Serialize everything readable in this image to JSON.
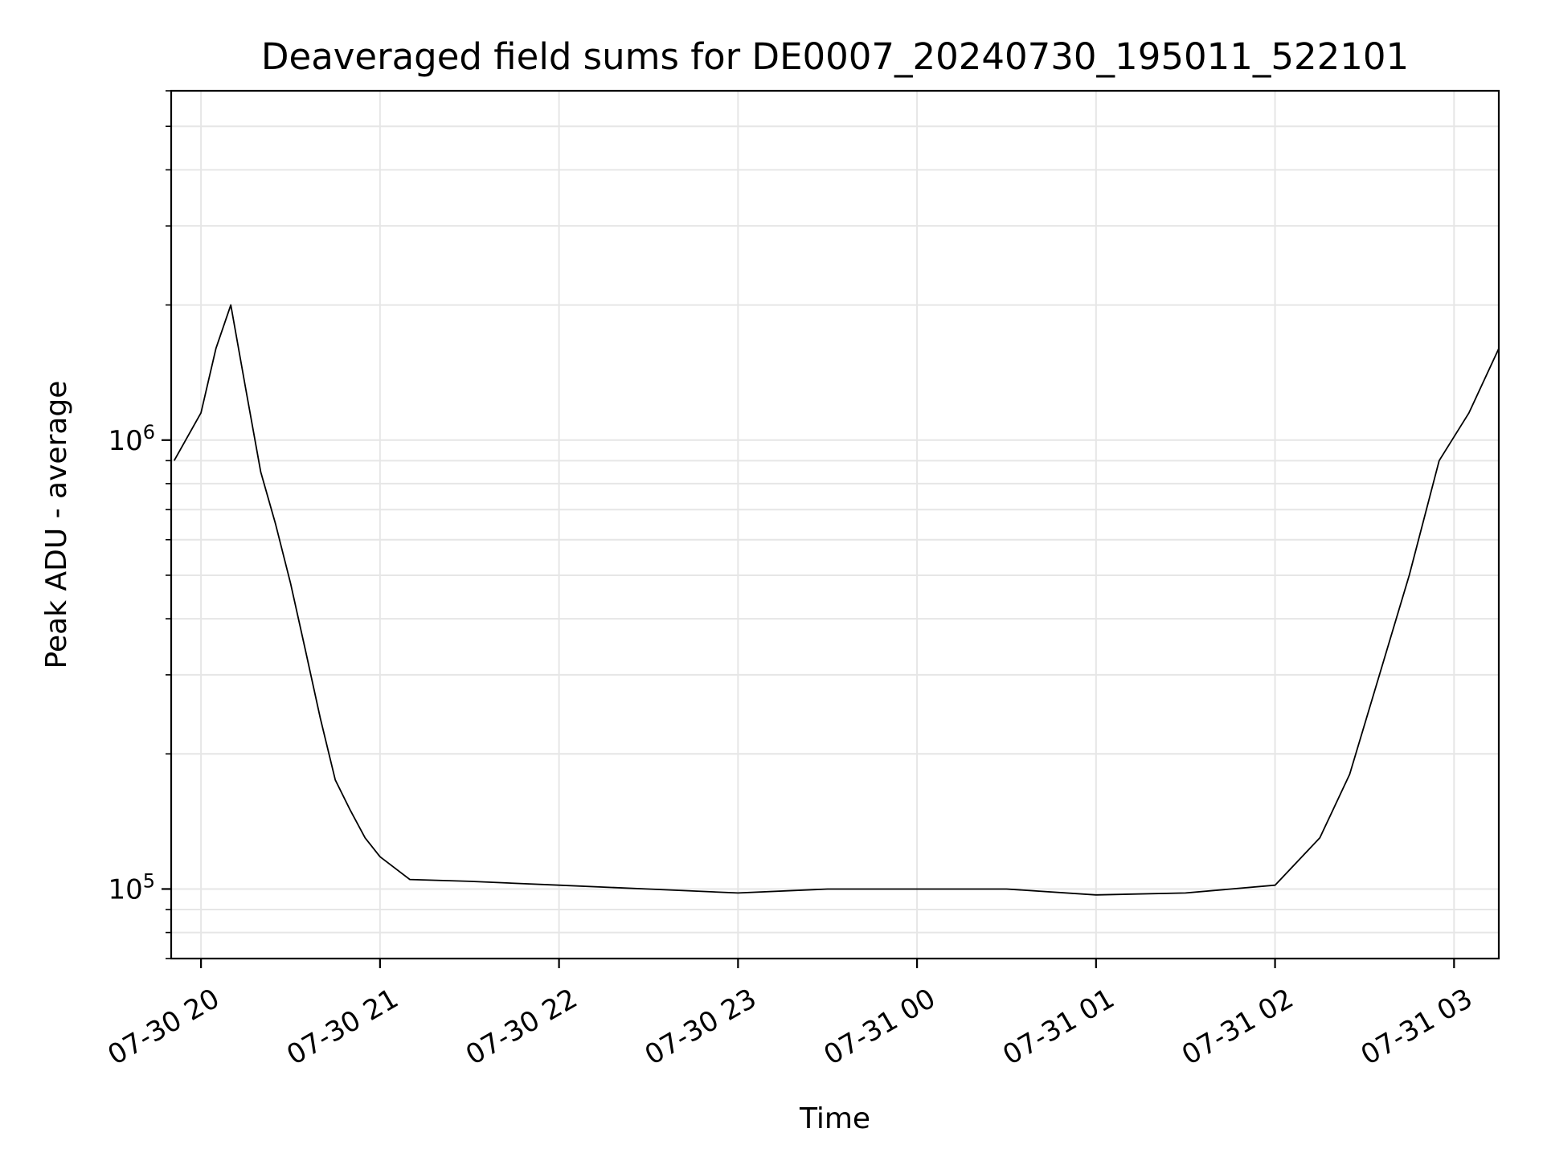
{
  "chart_data": {
    "type": "line",
    "title": "Deaveraged field sums for DE0007_20240730_195011_522101",
    "xlabel": "Time",
    "ylabel": "Peak ADU - average",
    "yscale": "log",
    "ylim": [
      70000,
      6000000
    ],
    "xlim": [
      "2024-07-30 19:50",
      "2024-07-31 03:15"
    ],
    "grid": true,
    "color": "#000000",
    "x_ticks": [
      "07-30 20",
      "07-30 21",
      "07-30 22",
      "07-30 23",
      "07-31 00",
      "07-31 01",
      "07-31 02",
      "07-31 03"
    ],
    "y_ticks": [
      {
        "base": "10",
        "exp": "5",
        "value": 100000
      },
      {
        "base": "10",
        "exp": "6",
        "value": 1000000
      }
    ],
    "series": [
      {
        "x": [
          "2024-07-30 19:51",
          "2024-07-30 20:00",
          "2024-07-30 20:05",
          "2024-07-30 20:10",
          "2024-07-30 20:15",
          "2024-07-30 20:20",
          "2024-07-30 20:25",
          "2024-07-30 20:30",
          "2024-07-30 20:35",
          "2024-07-30 20:40",
          "2024-07-30 20:45",
          "2024-07-30 20:50",
          "2024-07-30 20:55",
          "2024-07-30 21:00",
          "2024-07-30 21:10",
          "2024-07-30 21:30",
          "2024-07-30 22:00",
          "2024-07-30 22:30",
          "2024-07-30 23:00",
          "2024-07-30 23:30",
          "2024-07-31 00:00",
          "2024-07-31 00:30",
          "2024-07-31 01:00",
          "2024-07-31 01:30",
          "2024-07-31 02:00",
          "2024-07-31 02:15",
          "2024-07-31 02:25",
          "2024-07-31 02:35",
          "2024-07-31 02:45",
          "2024-07-31 02:55",
          "2024-07-31 03:05",
          "2024-07-31 03:15"
        ],
        "y": [
          900000,
          1150000,
          1600000,
          2000000,
          1300000,
          850000,
          650000,
          480000,
          340000,
          240000,
          175000,
          150000,
          130000,
          118000,
          105000,
          104000,
          102000,
          100000,
          98000,
          100000,
          100000,
          100000,
          97000,
          98000,
          102000,
          130000,
          180000,
          300000,
          500000,
          900000,
          1150000,
          1600000
        ]
      }
    ]
  }
}
